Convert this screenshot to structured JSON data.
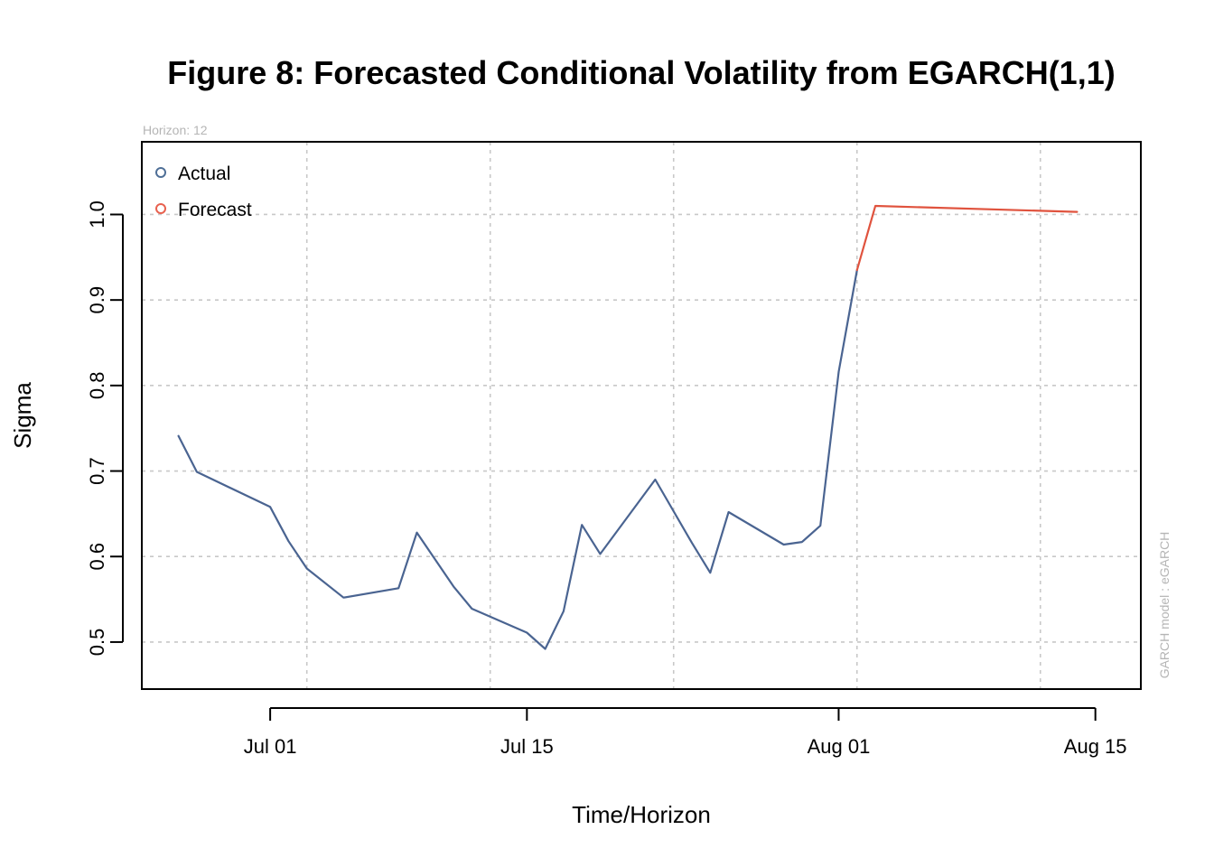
{
  "chart_data": {
    "type": "line",
    "title": "Figure 8: Forecasted Conditional Volatility from EGARCH(1,1)",
    "subtitle": "Horizon: 12",
    "side_note": "GARCH model :  eGARCH",
    "xlabel": "Time/Horizon",
    "ylabel": "Sigma",
    "xlim": [
      "2024-06-24",
      "2024-08-15"
    ],
    "ylim": [
      0.445,
      1.085
    ],
    "x_ticks": [
      {
        "date": "2024-07-01",
        "label": "Jul 01"
      },
      {
        "date": "2024-07-15",
        "label": "Jul 15"
      },
      {
        "date": "2024-08-01",
        "label": "Aug 01"
      },
      {
        "date": "2024-08-15",
        "label": "Aug 15"
      }
    ],
    "y_ticks": [
      {
        "value": 0.5,
        "label": "0.5"
      },
      {
        "value": 0.6,
        "label": "0.6"
      },
      {
        "value": 0.7,
        "label": "0.7"
      },
      {
        "value": 0.8,
        "label": "0.8"
      },
      {
        "value": 0.9,
        "label": "0.9"
      },
      {
        "value": 1.0,
        "label": "1.0"
      }
    ],
    "grid": true,
    "x_grid_dates": [
      "2024-07-03",
      "2024-07-13",
      "2024-07-23",
      "2024-08-02",
      "2024-08-12"
    ],
    "y_grid_values": [
      0.5,
      0.6,
      0.7,
      0.8,
      0.9,
      1.0
    ],
    "legend_position": "top-left",
    "series": [
      {
        "name": "Actual",
        "color": "#4a6491",
        "legend_color": "#4f6f97",
        "points": [
          {
            "x": "2024-06-26",
            "y": 0.741
          },
          {
            "x": "2024-06-27",
            "y": 0.699
          },
          {
            "x": "2024-07-01",
            "y": 0.658
          },
          {
            "x": "2024-07-02",
            "y": 0.618
          },
          {
            "x": "2024-07-03",
            "y": 0.586
          },
          {
            "x": "2024-07-05",
            "y": 0.552
          },
          {
            "x": "2024-07-08",
            "y": 0.563
          },
          {
            "x": "2024-07-09",
            "y": 0.628
          },
          {
            "x": "2024-07-11",
            "y": 0.565
          },
          {
            "x": "2024-07-12",
            "y": 0.539
          },
          {
            "x": "2024-07-15",
            "y": 0.511
          },
          {
            "x": "2024-07-16",
            "y": 0.492
          },
          {
            "x": "2024-07-17",
            "y": 0.536
          },
          {
            "x": "2024-07-18",
            "y": 0.637
          },
          {
            "x": "2024-07-19",
            "y": 0.603
          },
          {
            "x": "2024-07-22",
            "y": 0.69
          },
          {
            "x": "2024-07-24",
            "y": 0.616
          },
          {
            "x": "2024-07-25",
            "y": 0.581
          },
          {
            "x": "2024-07-26",
            "y": 0.652
          },
          {
            "x": "2024-07-29",
            "y": 0.614
          },
          {
            "x": "2024-07-30",
            "y": 0.617
          },
          {
            "x": "2024-07-31",
            "y": 0.636
          },
          {
            "x": "2024-08-01",
            "y": 0.816
          },
          {
            "x": "2024-08-02",
            "y": 0.935
          }
        ]
      },
      {
        "name": "Forecast",
        "color": "#e0533e",
        "legend_color": "#e8614f",
        "points": [
          {
            "x": "2024-08-02",
            "y": 0.935
          },
          {
            "x": "2024-08-03",
            "y": 1.01
          },
          {
            "x": "2024-08-14",
            "y": 1.003
          }
        ]
      }
    ]
  }
}
